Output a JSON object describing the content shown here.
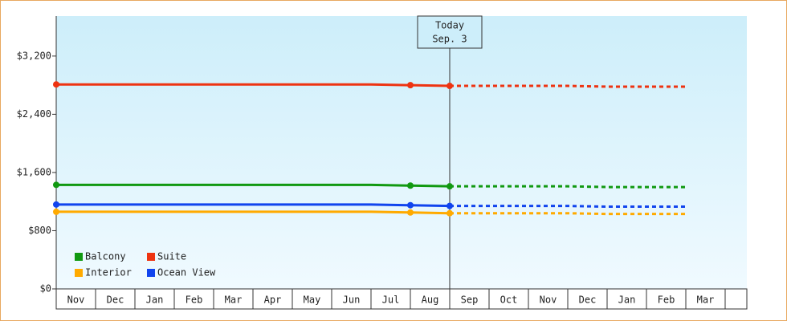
{
  "chart_data": {
    "type": "line",
    "categories": [
      "Nov",
      "Dec",
      "Jan",
      "Feb",
      "Mar",
      "Apr",
      "May",
      "Jun",
      "Jul",
      "Aug",
      "Sep",
      "Oct",
      "Nov",
      "Dec",
      "Jan",
      "Feb",
      "Mar"
    ],
    "series": [
      {
        "name": "Balcony",
        "color": "#119911",
        "values": [
          1430,
          1430,
          1430,
          1430,
          1430,
          1430,
          1430,
          1430,
          1430,
          1420,
          1410,
          null,
          null,
          null,
          null,
          null,
          null
        ],
        "forecast": [
          null,
          null,
          null,
          null,
          null,
          null,
          null,
          null,
          null,
          null,
          1410,
          1410,
          1410,
          1410,
          1400,
          1400,
          1400
        ]
      },
      {
        "name": "Suite",
        "color": "#ee3311",
        "values": [
          2810,
          2810,
          2810,
          2810,
          2810,
          2810,
          2810,
          2810,
          2810,
          2800,
          2790,
          null,
          null,
          null,
          null,
          null,
          null
        ],
        "forecast": [
          null,
          null,
          null,
          null,
          null,
          null,
          null,
          null,
          null,
          null,
          2790,
          2790,
          2790,
          2790,
          2780,
          2780,
          2780
        ]
      },
      {
        "name": "Interior",
        "color": "#ffaa00",
        "values": [
          1060,
          1060,
          1060,
          1060,
          1060,
          1060,
          1060,
          1060,
          1060,
          1050,
          1040,
          null,
          null,
          null,
          null,
          null,
          null
        ],
        "forecast": [
          null,
          null,
          null,
          null,
          null,
          null,
          null,
          null,
          null,
          null,
          1040,
          1040,
          1040,
          1040,
          1030,
          1030,
          1030
        ]
      },
      {
        "name": "Ocean View",
        "color": "#1144ee",
        "values": [
          1160,
          1160,
          1160,
          1160,
          1160,
          1160,
          1160,
          1160,
          1160,
          1150,
          1140,
          null,
          null,
          null,
          null,
          null,
          null
        ],
        "forecast": [
          null,
          null,
          null,
          null,
          null,
          null,
          null,
          null,
          null,
          null,
          1140,
          1140,
          1140,
          1140,
          1130,
          1130,
          1130
        ]
      }
    ],
    "annotation": [
      "Today",
      "Sep. 3"
    ],
    "ylim": [
      0,
      3750
    ],
    "yticks": [
      {
        "value": 0,
        "label": "$0"
      },
      {
        "value": 800,
        "label": "$800"
      },
      {
        "value": 1600,
        "label": "$1,600"
      },
      {
        "value": 2400,
        "label": "$2,400"
      },
      {
        "value": 3200,
        "label": "$3,200"
      }
    ]
  }
}
